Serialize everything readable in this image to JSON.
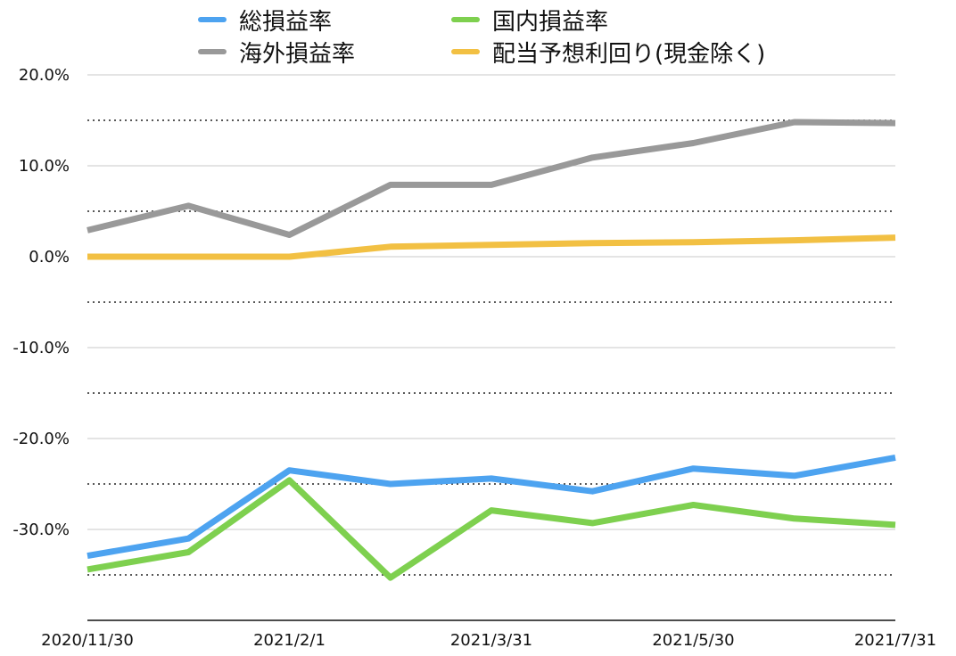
{
  "chart_data": {
    "type": "line",
    "title": "",
    "xlabel": "",
    "ylabel": "",
    "x": [
      "2020/11/30",
      "2020/12/30",
      "2021/2/1",
      "2021/3/1",
      "2021/3/31",
      "2021/4/30",
      "2021/5/30",
      "2021/6/30",
      "2021/7/31"
    ],
    "x_tick_labels": [
      "2020/11/30",
      "2021/2/1",
      "2021/3/31",
      "2021/5/30",
      "2021/7/31"
    ],
    "x_tick_indices": [
      0,
      2,
      4,
      6,
      8
    ],
    "ylim": [
      -40,
      20
    ],
    "y_ticks": [
      20,
      10,
      0,
      -10,
      -20,
      -30
    ],
    "y_tick_labels": [
      "20.0%",
      "10.0%",
      "0.0%",
      "-10.0%",
      "-20.0%",
      "-30.0%"
    ],
    "minor_gridlines": [
      15,
      5,
      -5,
      -15,
      -25,
      -35
    ],
    "grid": true,
    "legend_position": "top",
    "series": [
      {
        "name": "総損益率",
        "color": "#4da3f0",
        "values": [
          -32.9,
          -31.0,
          -23.5,
          -25.0,
          -24.4,
          -25.8,
          -23.3,
          -24.1,
          -22.1
        ]
      },
      {
        "name": "国内損益率",
        "color": "#7ed04f",
        "values": [
          -34.4,
          -32.5,
          -24.6,
          -35.3,
          -27.9,
          -29.3,
          -27.3,
          -28.8,
          -29.5
        ]
      },
      {
        "name": "海外損益率",
        "color": "#999999",
        "values": [
          2.9,
          5.6,
          2.4,
          7.9,
          7.9,
          10.9,
          12.5,
          14.8,
          14.7
        ]
      },
      {
        "name": "配当予想利回り(現金除く)",
        "color": "#f2c043",
        "values": [
          0.0,
          0.0,
          0.0,
          1.1,
          1.3,
          1.5,
          1.6,
          1.8,
          2.1
        ]
      }
    ]
  }
}
